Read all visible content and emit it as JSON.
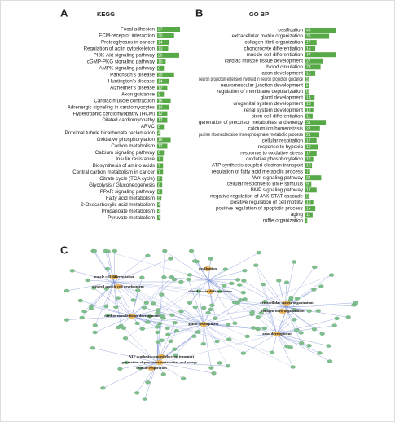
{
  "chart_data": [
    {
      "type": "bar",
      "panel": "A",
      "title": "KEGG",
      "color": "#57a846",
      "categories": [
        "Focal adhesion",
        "ECM-receptor interaction",
        "Proteoglycans in cancer",
        "Regulation of actin cytoskeleton",
        "PI3K-Akt signaling pathway",
        "cGMP-PKG signaling pathway",
        "AMPK signaling pathway",
        "Parkinson's disease",
        "Huntington's disease",
        "Alzheimer's disease",
        "Axon guidance",
        "Cardiac muscle contraction",
        "Adrenergic signaling in cardiomyocytes",
        "Hypertrophic cardiomyopathy (HCM)",
        "Dilated cardiomyopathy",
        "ARVC",
        "Proximal tubule bicarbonate reclamation",
        "Oxidative phosphorylation",
        "Carbon metabolism",
        "Calcium signaling pathway",
        "Insulin resistance",
        "Biosynthesis of amino acids",
        "Central carbon metabolism in cancer",
        "Citrate cycle (TCA cycle)",
        "Glycolysis / Gluconeogenesis",
        "PPAR signaling pathway",
        "Fatty acid metabolism",
        "2-Oxocarboxylic acid metabolism",
        "Propanoate metabolism",
        "Pyruvate metabolism"
      ],
      "values": [
        27,
        20,
        14,
        13,
        26,
        10,
        8,
        20,
        14,
        12,
        8,
        16,
        14,
        12,
        12,
        8,
        4,
        16,
        12,
        8,
        7,
        7,
        7,
        6,
        6,
        6,
        5,
        4,
        4,
        4
      ]
    },
    {
      "type": "bar",
      "panel": "B",
      "title": "GO BP",
      "color": "#57a846",
      "categories": [
        "ossification",
        "extracellular matrix organization",
        "collagen fibril organization",
        "chondrocyte differentiation",
        "muscle cell differentiation",
        "cardiac muscle tissue development",
        "blood circulation",
        "axon development",
        "neuron projection extension involved in neuron projection guidance",
        "neuromuscular junction development",
        "regulation of membrane depolarization",
        "gland development",
        "urogenital system development",
        "renal system development",
        "stem cell differentiation",
        "generation of precursor metabolites and energy",
        "calcium ion homeostasis",
        "purine ribonucleoside monophosphate metabolic process",
        "cellular respiration",
        "response to hypoxia",
        "response to oxidative stress",
        "oxidative phosphorylation",
        "ATP synthesis coupled electron transport",
        "regulation of fatty acid metabolic process",
        "Wnt signaling pathway",
        "cellular response to BMP stimulus",
        "BMP signaling pathway",
        "negative regulation of JAK-STAT cascade",
        "positive regulation of cell motility",
        "positive regulation of apoptotic process",
        "aging",
        "ruffle organization"
      ],
      "values": [
        46,
        36,
        17,
        15,
        47,
        27,
        23,
        15,
        5,
        5,
        6,
        14,
        13,
        12,
        11,
        31,
        22,
        21,
        17,
        19,
        17,
        12,
        10,
        7,
        24,
        9,
        17,
        5,
        12,
        15,
        11,
        3
      ]
    }
  ],
  "network": {
    "panel": "C",
    "hubs": [
      "muscle cell differentiation",
      "striated muscle cell development",
      "ossification",
      "chondrocyte differentiation",
      "extracellular matrix organization",
      "collagen fibril organization",
      "cardiac muscle tissue development",
      "gland development",
      "axon development",
      "ATP synthesis coupled electron transport",
      "generation of precursor metabolites and energy",
      "cellular respiration"
    ]
  }
}
